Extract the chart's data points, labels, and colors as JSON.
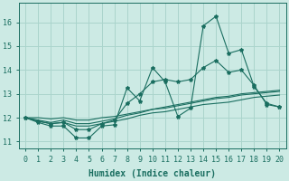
{
  "xlabel": "Humidex (Indice chaleur)",
  "ylabel": "",
  "bg_color": "#cceae4",
  "grid_color": "#aad4cc",
  "line_color": "#1a6e60",
  "xlim": [
    -0.5,
    20.5
  ],
  "ylim": [
    10.7,
    16.8
  ],
  "yticks": [
    11,
    12,
    13,
    14,
    15,
    16
  ],
  "xticks": [
    0,
    1,
    2,
    3,
    4,
    5,
    6,
    7,
    8,
    9,
    10,
    11,
    12,
    13,
    14,
    15,
    16,
    17,
    18,
    19,
    20
  ],
  "series": [
    [
      12.0,
      11.8,
      11.65,
      11.65,
      11.15,
      11.15,
      11.65,
      11.7,
      13.25,
      12.7,
      14.1,
      13.5,
      12.05,
      12.4,
      15.85,
      16.25,
      14.7,
      14.85,
      13.3,
      12.6,
      12.45
    ],
    [
      12.0,
      11.85,
      11.75,
      11.8,
      11.5,
      11.5,
      11.75,
      11.9,
      12.6,
      13.0,
      13.5,
      13.6,
      13.5,
      13.6,
      14.1,
      14.4,
      13.9,
      14.0,
      13.35,
      12.55,
      12.45
    ],
    [
      12.0,
      11.9,
      11.8,
      11.9,
      11.75,
      11.75,
      11.85,
      11.95,
      12.1,
      12.2,
      12.35,
      12.4,
      12.5,
      12.6,
      12.7,
      12.8,
      12.85,
      12.95,
      13.0,
      13.05,
      13.1
    ],
    [
      12.0,
      11.85,
      11.75,
      11.8,
      11.65,
      11.65,
      11.75,
      11.85,
      11.95,
      12.1,
      12.2,
      12.25,
      12.35,
      12.45,
      12.55,
      12.6,
      12.65,
      12.75,
      12.85,
      12.9,
      12.95
    ],
    [
      12.0,
      12.0,
      11.95,
      12.0,
      11.9,
      11.9,
      12.0,
      12.05,
      12.15,
      12.25,
      12.35,
      12.45,
      12.55,
      12.65,
      12.75,
      12.85,
      12.9,
      13.0,
      13.05,
      13.1,
      13.15
    ]
  ],
  "marker_series_idx": 0,
  "marker2_series_idx": 1,
  "font_size": 7,
  "font_family": "monospace"
}
